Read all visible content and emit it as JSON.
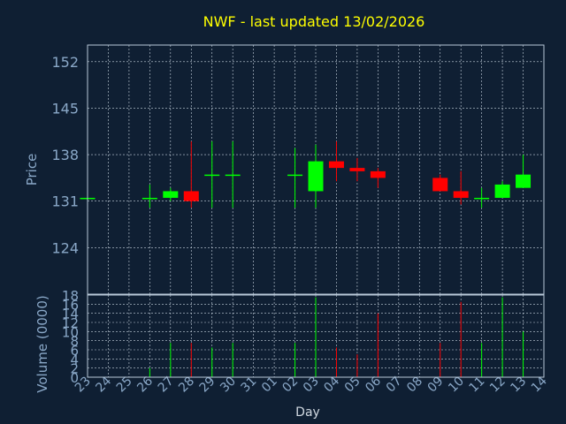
{
  "colors": {
    "background": "#0f1f33",
    "title": "#ffff00",
    "axis_text": "#8aa8c8",
    "frame": "#b8c8d8",
    "grid": "#c8d4e0",
    "up": "#00ff00",
    "down": "#ff0000"
  },
  "chart_data": {
    "type": "candlestick",
    "title": "NWF - last updated 13/02/2026",
    "xlabel": "Day",
    "price_panel": {
      "ylabel": "Price",
      "yticks": [
        124,
        131,
        138,
        145,
        152
      ],
      "ylim": [
        117,
        154.5
      ],
      "grid": true
    },
    "volume_panel": {
      "ylabel": "Volume (0000)",
      "yticks": [
        0,
        2,
        4,
        6,
        8,
        10,
        12,
        14,
        16,
        18
      ],
      "ylim": [
        0,
        18
      ],
      "grid": true
    },
    "x_ticks": [
      "23",
      "24",
      "25",
      "26",
      "27",
      "28",
      "29",
      "30",
      "31",
      "01",
      "02",
      "03",
      "04",
      "05",
      "06",
      "07",
      "08",
      "09",
      "10",
      "11",
      "12",
      "13",
      "14"
    ],
    "candles": [
      {
        "day": "23",
        "open": 131.5,
        "high": 131.5,
        "low": 131.5,
        "close": 131.5,
        "volume": 0
      },
      {
        "day": "26",
        "open": 131.5,
        "high": 133.5,
        "low": 130.0,
        "close": 131.5,
        "volume": 2
      },
      {
        "day": "27",
        "open": 131.5,
        "high": 133.0,
        "low": 131.0,
        "close": 132.5,
        "volume": 7.5
      },
      {
        "day": "28",
        "open": 132.5,
        "high": 140.0,
        "low": 130.0,
        "close": 131.0,
        "volume": 7.5
      },
      {
        "day": "29",
        "open": 135.0,
        "high": 140.0,
        "low": 130.0,
        "close": 135.0,
        "volume": 6.5
      },
      {
        "day": "30",
        "open": 135.0,
        "high": 140.0,
        "low": 130.0,
        "close": 135.0,
        "volume": 7.5
      },
      {
        "day": "02",
        "open": 135.0,
        "high": 139.0,
        "low": 130.0,
        "close": 135.0,
        "volume": 7.5
      },
      {
        "day": "03",
        "open": 132.5,
        "high": 139.5,
        "low": 130.0,
        "close": 137.0,
        "volume": 17.5
      },
      {
        "day": "04",
        "open": 137.0,
        "high": 140.0,
        "low": 134.0,
        "close": 136.0,
        "volume": 6.5
      },
      {
        "day": "05",
        "open": 136.0,
        "high": 137.5,
        "low": 134.0,
        "close": 135.5,
        "volume": 5
      },
      {
        "day": "06",
        "open": 135.5,
        "high": 136.0,
        "low": 133.0,
        "close": 134.5,
        "volume": 14
      },
      {
        "day": "09",
        "open": 134.5,
        "high": 135.0,
        "low": 132.5,
        "close": 132.5,
        "volume": 7.5
      },
      {
        "day": "10",
        "open": 132.5,
        "high": 135.5,
        "low": 130.5,
        "close": 131.5,
        "volume": 16.5
      },
      {
        "day": "11",
        "open": 131.5,
        "high": 133.0,
        "low": 130.0,
        "close": 131.5,
        "volume": 7.5
      },
      {
        "day": "12",
        "open": 131.5,
        "high": 134.0,
        "low": 131.5,
        "close": 133.5,
        "volume": 17.5
      },
      {
        "day": "13",
        "open": 133.0,
        "high": 138.0,
        "low": 133.0,
        "close": 135.0,
        "volume": 10
      }
    ]
  }
}
